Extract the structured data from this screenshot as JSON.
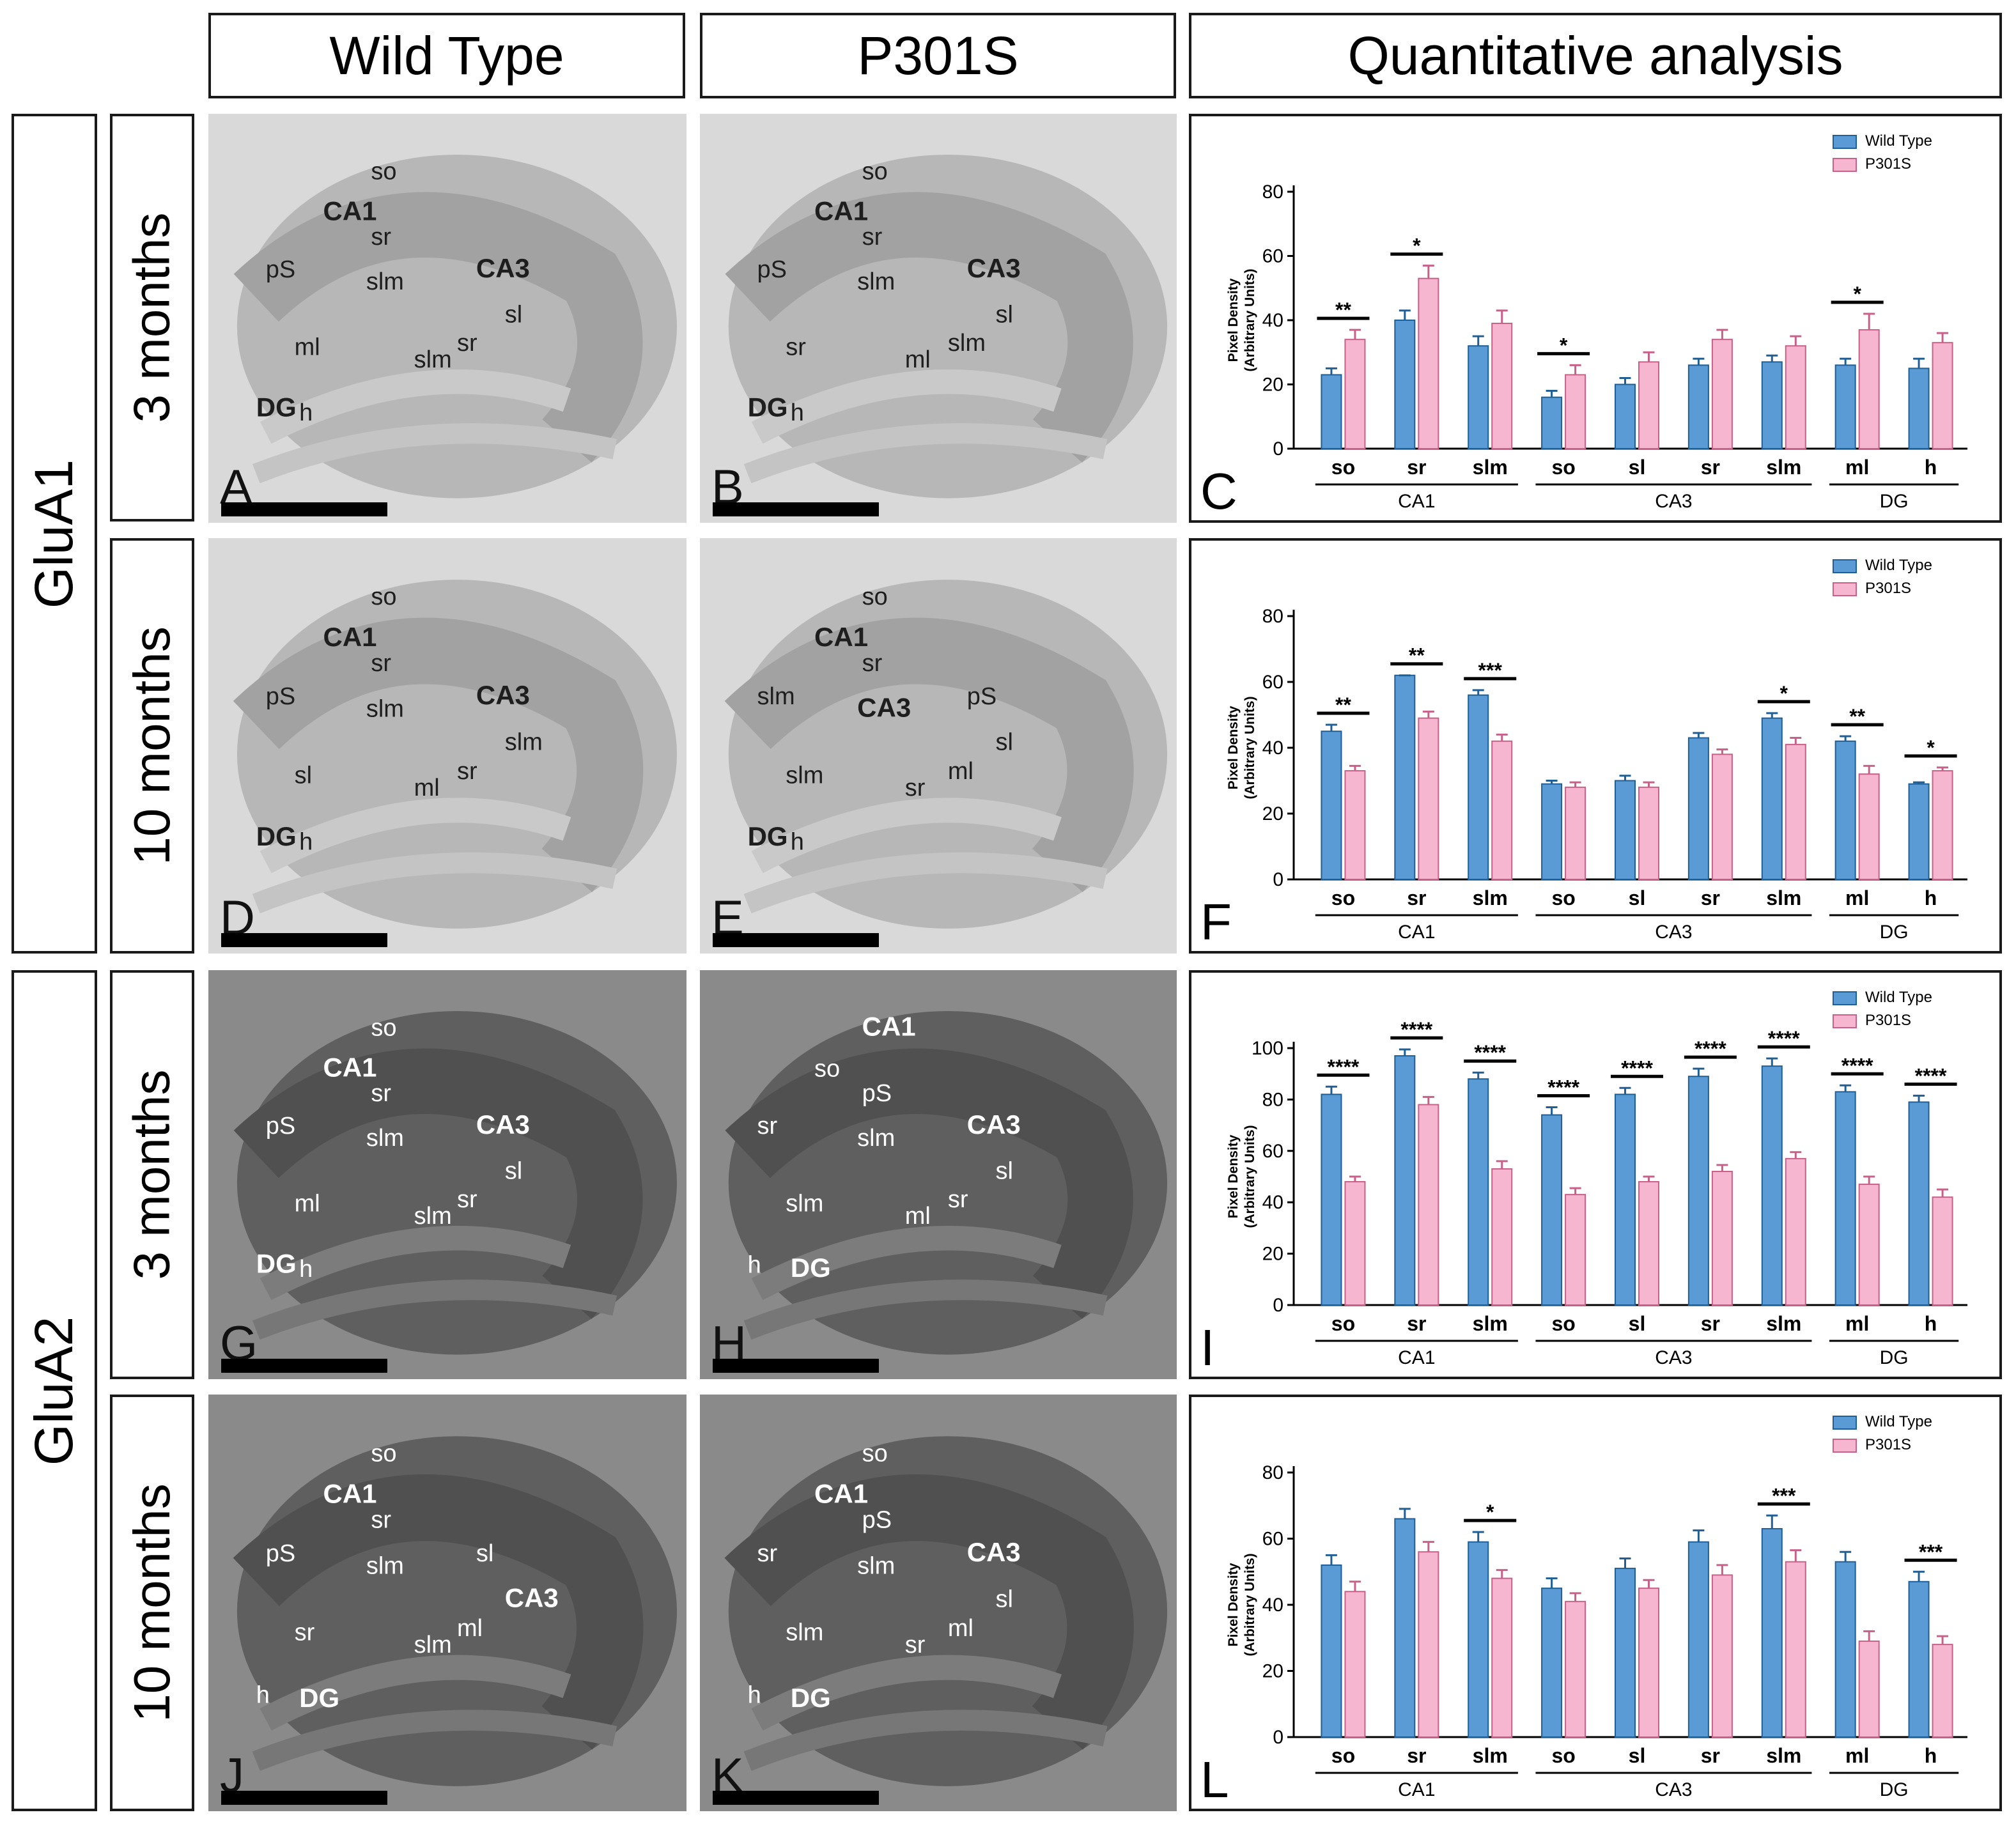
{
  "column_headers": [
    "Wild Type",
    "P301S",
    "Quantitative analysis"
  ],
  "row_groups": [
    "GluA1",
    "GluA2"
  ],
  "row_labels": [
    "3 months",
    "10 months",
    "3 months",
    "10 months"
  ],
  "colors": {
    "wild_type": "#5b9bd5",
    "p301s": "#f7b6cf",
    "bar_edge": "#1f5f95",
    "pink_edge": "#c8608a"
  },
  "images": [
    {
      "letter": "A",
      "tone": "light",
      "text_color": "#1e1e1e",
      "labels": [
        "so",
        "CA1",
        "sr",
        "pS",
        "slm",
        "CA3",
        "sl",
        "sr",
        "ml",
        "slm",
        "DG",
        "h"
      ]
    },
    {
      "letter": "B",
      "tone": "light",
      "text_color": "#1e1e1e",
      "labels": [
        "so",
        "CA1",
        "sr",
        "pS",
        "slm",
        "CA3",
        "sl",
        "slm",
        "sr",
        "ml",
        "DG",
        "h"
      ]
    },
    {
      "letter": "D",
      "tone": "light",
      "text_color": "#1e1e1e",
      "labels": [
        "so",
        "CA1",
        "sr",
        "pS",
        "slm",
        "CA3",
        "slm",
        "sr",
        "sl",
        "ml",
        "DG",
        "h"
      ]
    },
    {
      "letter": "E",
      "tone": "light",
      "text_color": "#1e1e1e",
      "labels": [
        "so",
        "CA1",
        "sr",
        "slm",
        "CA3",
        "pS",
        "sl",
        "ml",
        "slm",
        "sr",
        "DG",
        "h"
      ]
    },
    {
      "letter": "G",
      "tone": "dark",
      "text_color": "#ffffff",
      "labels": [
        "so",
        "CA1",
        "sr",
        "pS",
        "slm",
        "CA3",
        "sl",
        "sr",
        "ml",
        "slm",
        "DG",
        "h"
      ]
    },
    {
      "letter": "H",
      "tone": "dark",
      "text_color": "#ffffff",
      "labels": [
        "CA1",
        "so",
        "pS",
        "sr",
        "slm",
        "CA3",
        "sl",
        "sr",
        "slm",
        "ml",
        "h",
        "DG"
      ]
    },
    {
      "letter": "J",
      "tone": "dark",
      "text_color": "#ffffff",
      "labels": [
        "so",
        "CA1",
        "sr",
        "pS",
        "slm",
        "sl",
        "CA3",
        "ml",
        "sr",
        "slm",
        "h",
        "DG"
      ]
    },
    {
      "letter": "K",
      "tone": "dark",
      "text_color": "#ffffff",
      "labels": [
        "so",
        "CA1",
        "pS",
        "sr",
        "slm",
        "CA3",
        "sl",
        "ml",
        "slm",
        "sr",
        "h",
        "DG"
      ]
    }
  ],
  "chart_data": [
    {
      "panel": "C",
      "type": "bar",
      "ylabel": "Pixel Density (Arbitrary Units)",
      "ylim": [
        0,
        80
      ],
      "yticks": [
        0,
        20,
        40,
        60,
        80
      ],
      "categories": [
        "so",
        "sr",
        "slm",
        "so",
        "sl",
        "sr",
        "slm",
        "ml",
        "h"
      ],
      "groups": [
        {
          "name": "CA1",
          "span": [
            0,
            2
          ]
        },
        {
          "name": "CA3",
          "span": [
            3,
            6
          ]
        },
        {
          "name": "DG",
          "span": [
            7,
            8
          ]
        }
      ],
      "legend": [
        "Wild Type",
        "P301S"
      ],
      "series": [
        {
          "name": "Wild Type",
          "values": [
            23,
            40,
            32,
            16,
            20,
            26,
            27,
            26,
            25
          ],
          "errors": [
            2,
            3,
            3,
            2,
            2,
            2,
            2,
            2,
            3
          ]
        },
        {
          "name": "P301S",
          "values": [
            34,
            53,
            39,
            23,
            27,
            34,
            32,
            37,
            33
          ],
          "errors": [
            3,
            4,
            4,
            3,
            3,
            3,
            3,
            5,
            3
          ]
        }
      ],
      "significance": [
        "**",
        "*",
        "",
        "*",
        "",
        "",
        "",
        "*",
        ""
      ]
    },
    {
      "panel": "F",
      "type": "bar",
      "ylabel": "Pixel Density (Arbitrary Units)",
      "ylim": [
        0,
        80
      ],
      "yticks": [
        0,
        20,
        40,
        60,
        80
      ],
      "categories": [
        "so",
        "sr",
        "slm",
        "so",
        "sl",
        "sr",
        "slm",
        "ml",
        "h"
      ],
      "groups": [
        {
          "name": "CA1",
          "span": [
            0,
            2
          ]
        },
        {
          "name": "CA3",
          "span": [
            3,
            6
          ]
        },
        {
          "name": "DG",
          "span": [
            7,
            8
          ]
        }
      ],
      "legend": [
        "Wild Type",
        "P301S"
      ],
      "series": [
        {
          "name": "Wild Type",
          "values": [
            45,
            62,
            56,
            29,
            30,
            43,
            49,
            42,
            29
          ],
          "errors": [
            2,
            0,
            1.5,
            1,
            1.5,
            1.5,
            1.5,
            1.5,
            0.5
          ]
        },
        {
          "name": "P301S",
          "values": [
            33,
            49,
            42,
            28,
            28,
            38,
            41,
            32,
            33
          ],
          "errors": [
            1.5,
            2,
            2,
            1.5,
            1.5,
            1.5,
            2,
            2.5,
            1
          ]
        }
      ],
      "significance": [
        "**",
        "**",
        "***",
        "",
        "",
        "",
        "*",
        "**",
        "*"
      ]
    },
    {
      "panel": "I",
      "type": "bar",
      "ylabel": "Pixel Density (Arbitrary Units)",
      "ylim": [
        0,
        100
      ],
      "yticks": [
        0,
        20,
        40,
        60,
        80,
        100
      ],
      "categories": [
        "so",
        "sr",
        "slm",
        "so",
        "sl",
        "sr",
        "slm",
        "ml",
        "h"
      ],
      "groups": [
        {
          "name": "CA1",
          "span": [
            0,
            2
          ]
        },
        {
          "name": "CA3",
          "span": [
            3,
            6
          ]
        },
        {
          "name": "DG",
          "span": [
            7,
            8
          ]
        }
      ],
      "legend": [
        "Wild Type",
        "P301S"
      ],
      "series": [
        {
          "name": "Wild Type",
          "values": [
            82,
            97,
            88,
            74,
            82,
            89,
            93,
            83,
            79
          ],
          "errors": [
            3,
            2.5,
            2.5,
            3,
            2.5,
            3,
            3,
            2.5,
            2.5
          ]
        },
        {
          "name": "P301S",
          "values": [
            48,
            78,
            53,
            43,
            48,
            52,
            57,
            47,
            42
          ],
          "errors": [
            2,
            3,
            3,
            2.5,
            2,
            2.5,
            2.5,
            3,
            3
          ]
        }
      ],
      "significance": [
        "****",
        "****",
        "****",
        "****",
        "****",
        "****",
        "****",
        "****",
        "****"
      ]
    },
    {
      "panel": "L",
      "type": "bar",
      "ylabel": "Pixel Density (Arbitrary Units)",
      "ylim": [
        0,
        80
      ],
      "yticks": [
        0,
        20,
        40,
        60,
        80
      ],
      "categories": [
        "so",
        "sr",
        "slm",
        "so",
        "sl",
        "sr",
        "slm",
        "ml",
        "h"
      ],
      "groups": [
        {
          "name": "CA1",
          "span": [
            0,
            2
          ]
        },
        {
          "name": "CA3",
          "span": [
            3,
            6
          ]
        },
        {
          "name": "DG",
          "span": [
            7,
            8
          ]
        }
      ],
      "legend": [
        "Wild Type",
        "P301S"
      ],
      "series": [
        {
          "name": "Wild Type",
          "values": [
            52,
            66,
            59,
            45,
            51,
            59,
            63,
            53,
            47
          ],
          "errors": [
            3,
            3,
            3,
            3,
            3,
            3.5,
            4,
            3,
            3
          ]
        },
        {
          "name": "P301S",
          "values": [
            44,
            56,
            48,
            41,
            45,
            49,
            53,
            29,
            28
          ],
          "errors": [
            3,
            3,
            2.5,
            2.5,
            2.5,
            3,
            3.5,
            3,
            2.5
          ]
        }
      ],
      "significance": [
        "",
        "",
        "*",
        "",
        "",
        "",
        "***",
        "",
        "***"
      ]
    }
  ]
}
